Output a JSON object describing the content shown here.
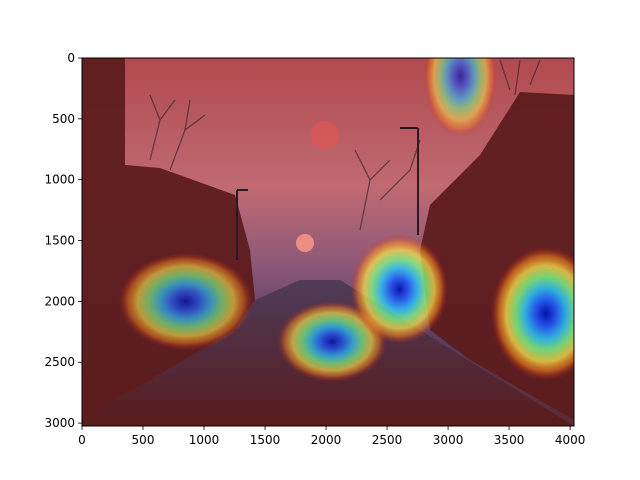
{
  "chart_data": {
    "type": "heatmap",
    "title": "",
    "xlabel": "",
    "ylabel": "",
    "xlim": [
      0,
      4032
    ],
    "ylim": [
      3024,
      0
    ],
    "x_ticks": [
      0,
      500,
      1000,
      1500,
      2000,
      2500,
      3000,
      3500,
      4000
    ],
    "y_ticks": [
      0,
      500,
      1000,
      1500,
      2000,
      2500,
      3000
    ],
    "x_tick_labels": [
      "0",
      "500",
      "1000",
      "1500",
      "2000",
      "2500",
      "3000",
      "3500",
      "4000"
    ],
    "y_tick_labels": [
      "0",
      "500",
      "1000",
      "1500",
      "2000",
      "2500",
      "3000"
    ],
    "colormap": "jet",
    "background_image": "street scene at dusk with bare trees, buildings and street lamps",
    "hotspots": [
      {
        "name": "upper-right-sky",
        "x": 3100,
        "y": 150,
        "rx": 300,
        "ry": 500,
        "intensity": 0.7
      },
      {
        "name": "left-building",
        "x": 850,
        "y": 2000,
        "rx": 550,
        "ry": 400,
        "intensity": 0.8
      },
      {
        "name": "center-street",
        "x": 2050,
        "y": 2330,
        "rx": 450,
        "ry": 330,
        "intensity": 0.85
      },
      {
        "name": "center-right",
        "x": 2600,
        "y": 1900,
        "rx": 400,
        "ry": 450,
        "intensity": 0.95
      },
      {
        "name": "right-building",
        "x": 3800,
        "y": 2100,
        "rx": 450,
        "ry": 550,
        "intensity": 1.0
      }
    ]
  }
}
